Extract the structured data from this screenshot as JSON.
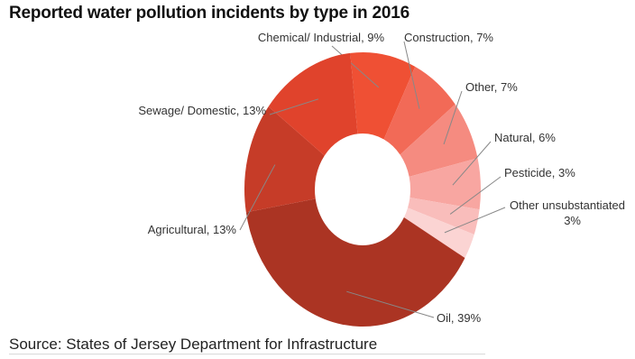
{
  "chart_data": {
    "type": "pie",
    "title": "Reported water pollution incidents by type in 2016",
    "source": "Source: States of Jersey Department for Infrastructure",
    "donut": true,
    "slices": [
      {
        "label": "Chemical/ Industrial, 9%",
        "value": 9,
        "color": "#ef5034"
      },
      {
        "label": "Construction, 7%",
        "value": 7,
        "color": "#f26a57"
      },
      {
        "label": "Other, 7%",
        "value": 7,
        "color": "#f58b80"
      },
      {
        "label": "Natural, 6%",
        "value": 6,
        "color": "#f8a6a1"
      },
      {
        "label": "Pesticide, 3%",
        "value": 3,
        "color": "#f9bdbb"
      },
      {
        "label": "Other unsubstantiated 3%",
        "value": 3,
        "color": "#fbd4d3"
      },
      {
        "label": "Oil, 39%",
        "value": 39,
        "color": "#ab3423"
      },
      {
        "label": "Agricultural, 13%",
        "value": 13,
        "color": "#c63c28"
      },
      {
        "label": "Sewage/ Domestic, 13%",
        "value": 13,
        "color": "#e0432c"
      }
    ]
  }
}
